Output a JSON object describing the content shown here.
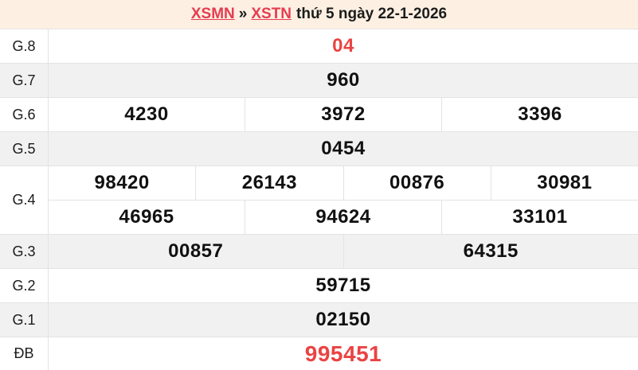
{
  "colors": {
    "page_background": "#fdf0e3",
    "row_white": "#ffffff",
    "row_gray": "#f1f1f1",
    "border": "#e3e3e3",
    "text": "#1c1c1c",
    "link_red": "#e63c50",
    "value_red": "#ea4343"
  },
  "header": {
    "link_region": "XSMN",
    "separator": "»",
    "link_province": "XSTN",
    "suffix": "thứ 5 ngày 22-1-2026"
  },
  "table": {
    "rows": [
      {
        "key": "g8",
        "label": "G.8",
        "red": true,
        "big": false,
        "height": 43,
        "lines": [
          [
            "04"
          ]
        ]
      },
      {
        "key": "g7",
        "label": "G.7",
        "red": false,
        "big": false,
        "height": 43,
        "lines": [
          [
            "960"
          ]
        ]
      },
      {
        "key": "g6",
        "label": "G.6",
        "red": false,
        "big": false,
        "height": 43,
        "lines": [
          [
            "4230",
            "3972",
            "3396"
          ]
        ]
      },
      {
        "key": "g5",
        "label": "G.5",
        "red": false,
        "big": false,
        "height": 43,
        "lines": [
          [
            "0454"
          ]
        ]
      },
      {
        "key": "g4",
        "label": "G.4",
        "red": false,
        "big": false,
        "height": 86,
        "lines": [
          [
            "98420",
            "26143",
            "00876",
            "30981"
          ],
          [
            "46965",
            "94624",
            "33101"
          ]
        ]
      },
      {
        "key": "g3",
        "label": "G.3",
        "red": false,
        "big": false,
        "height": 43,
        "lines": [
          [
            "00857",
            "64315"
          ]
        ]
      },
      {
        "key": "g2",
        "label": "G.2",
        "red": false,
        "big": false,
        "height": 43,
        "lines": [
          [
            "59715"
          ]
        ]
      },
      {
        "key": "g1",
        "label": "G.1",
        "red": false,
        "big": false,
        "height": 43,
        "lines": [
          [
            "02150"
          ]
        ]
      },
      {
        "key": "db",
        "label": "ĐB",
        "red": true,
        "big": true,
        "height": 42,
        "lines": [
          [
            "995451"
          ]
        ]
      }
    ]
  }
}
